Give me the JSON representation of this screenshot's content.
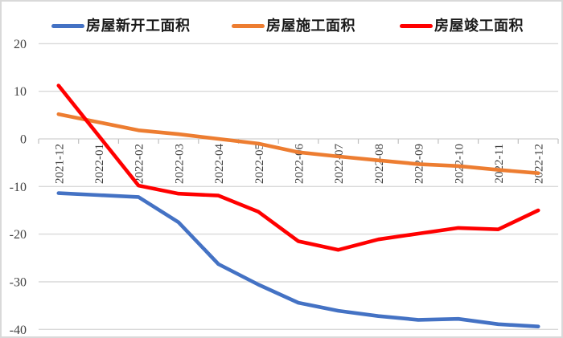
{
  "chart_data": {
    "type": "line",
    "title": "",
    "xlabel": "",
    "ylabel": "",
    "categories": [
      "2021-12",
      "2022-01",
      "2022-02",
      "2022-03",
      "2022-04",
      "2022-05",
      "2022-06",
      "2022-07",
      "2022-08",
      "2022-09",
      "2022-10",
      "2022-11",
      "2022-12"
    ],
    "series": [
      {
        "name": "房屋新开工面积",
        "color": "#4472C4",
        "values": [
          -11.4,
          -11.8,
          -12.2,
          -17.5,
          -26.3,
          -30.6,
          -34.4,
          -36.1,
          -37.2,
          -38.0,
          -37.8,
          -38.9,
          -39.4
        ]
      },
      {
        "name": "房屋施工面积",
        "color": "#ED7D31",
        "values": [
          5.2,
          3.5,
          1.8,
          1.0,
          0.0,
          -1.0,
          -2.8,
          -3.7,
          -4.5,
          -5.3,
          -5.7,
          -6.5,
          -7.2
        ]
      },
      {
        "name": "房屋竣工面积",
        "color": "#FF0000",
        "values": [
          11.2,
          0.7,
          -9.8,
          -11.5,
          -11.9,
          -15.3,
          -21.5,
          -23.3,
          -21.1,
          -19.9,
          -18.7,
          -19.0,
          -15.0
        ]
      }
    ],
    "y_ticks": [
      20,
      10,
      0,
      -10,
      -20,
      -30,
      -40
    ],
    "ylim": [
      -40,
      20
    ],
    "grid": "horizontal",
    "legend_position": "top",
    "x_label_rotation": 90
  },
  "colors": {
    "grid": "#D9D9D9",
    "tick": "#BFBFBF",
    "axis_text": "#404040",
    "legend_text": "#1A1A1A",
    "border": "#D9D9D9",
    "background": "#FFFFFF"
  }
}
